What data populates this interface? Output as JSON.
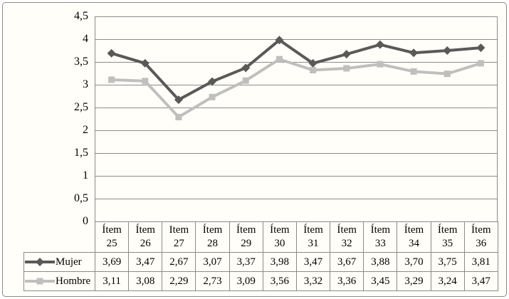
{
  "colors": {
    "background": "#fffef9",
    "frame_border": "#8a8a8a",
    "grid": "#8c8c8c",
    "axis": "#8c8c8c",
    "table_border": "#8a8a8a",
    "text": "#000000",
    "series_mujer": "#595959",
    "series_hombre": "#bfbfbf"
  },
  "chart_data": {
    "type": "line",
    "title": "",
    "xlabel": "",
    "ylabel": "",
    "categories": [
      "Ítem 25",
      "Ítem 26",
      "Item 27",
      "Ítem 28",
      "Ítem 29",
      "Ítem 30",
      "Ítem 31",
      "Ítem 32",
      "Ítem 33",
      "Ítem 34",
      "Ítem 35",
      "Ítem 36"
    ],
    "series": [
      {
        "name": "Mujer",
        "marker": "diamond",
        "color": "#595959",
        "values": [
          3.69,
          3.47,
          2.67,
          3.07,
          3.37,
          3.98,
          3.47,
          3.67,
          3.88,
          3.7,
          3.75,
          3.81
        ]
      },
      {
        "name": "Hombre",
        "marker": "square",
        "color": "#bfbfbf",
        "values": [
          3.11,
          3.08,
          2.29,
          2.73,
          3.09,
          3.56,
          3.32,
          3.36,
          3.45,
          3.29,
          3.24,
          3.47
        ]
      }
    ],
    "ylim": [
      0,
      4.5
    ],
    "ytick_step": 0.5,
    "ytick_labels": [
      "0",
      "0,5",
      "1",
      "1,5",
      "2",
      "2,5",
      "3",
      "3,5",
      "4",
      "4,5"
    ],
    "decimal_separator": ",",
    "grid": true,
    "legend_position": "table-left",
    "data_table_shown": true
  }
}
